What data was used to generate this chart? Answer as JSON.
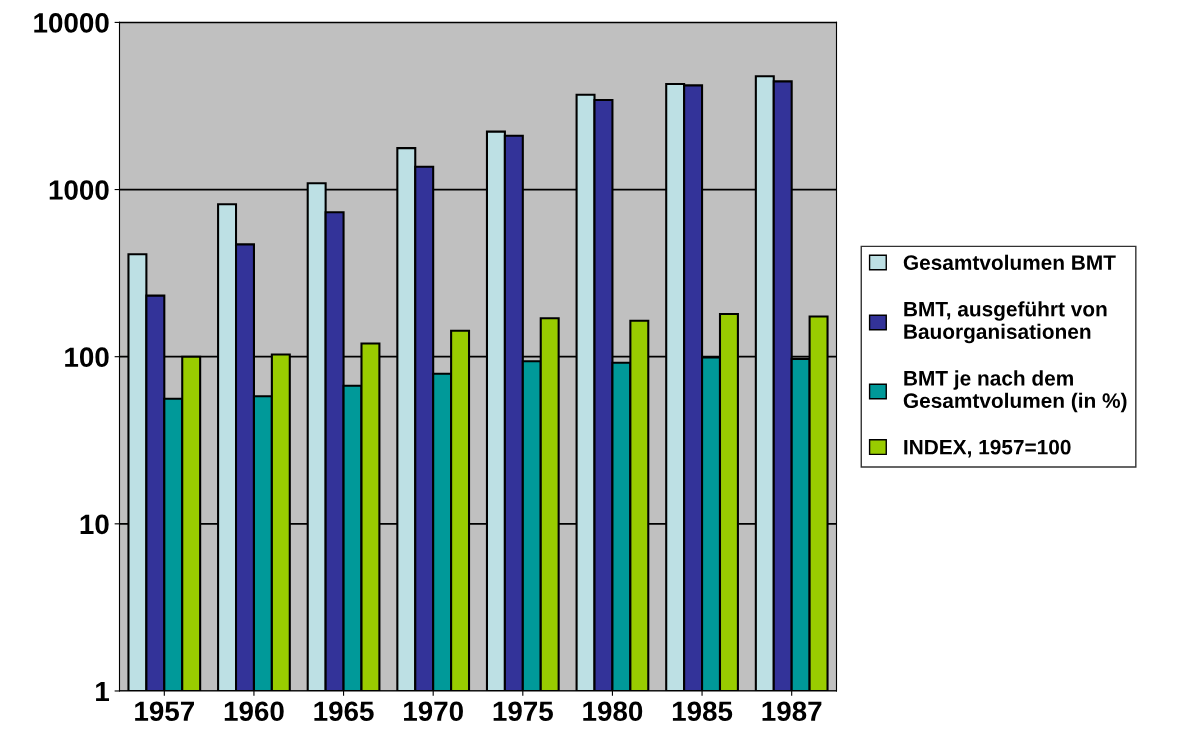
{
  "chart_data": {
    "type": "bar",
    "categories": [
      "1957",
      "1960",
      "1965",
      "1970",
      "1975",
      "1980",
      "1985",
      "1987"
    ],
    "series": [
      {
        "name": "Gesamtvolumen BMT",
        "color": "#bde0e4",
        "values": [
          410,
          816,
          1090,
          1770,
          2220,
          3690,
          4280,
          4760
        ]
      },
      {
        "name": "BMT, ausgeführt von Bauorganisationen",
        "color": "#333399",
        "values": [
          232,
          470,
          731,
          1370,
          2100,
          3430,
          4200,
          4440
        ]
      },
      {
        "name": "BMT je nach dem Gesamtvolumen (in %)",
        "color": "#009999",
        "values": [
          56,
          58,
          67,
          79,
          94,
          92,
          99,
          97
        ]
      },
      {
        "name": "INDEX, 1957=100",
        "color": "#99cc00",
        "values": [
          100,
          103,
          120,
          143,
          170,
          164,
          180,
          174
        ]
      }
    ],
    "log": true,
    "ylim": [
      1,
      10000
    ],
    "yticks": [
      1,
      10,
      100,
      1000,
      10000
    ],
    "grid": "y",
    "legend": "right"
  }
}
